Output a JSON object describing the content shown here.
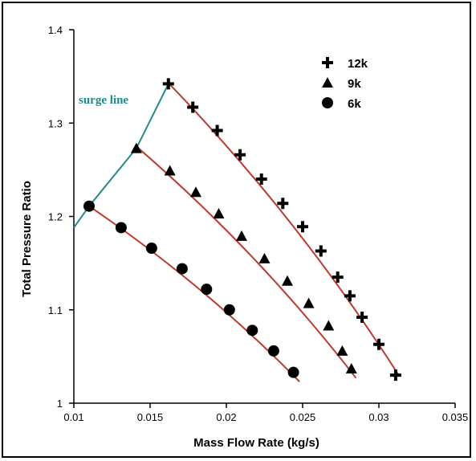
{
  "chart_data": {
    "type": "scatter",
    "xlabel": "Mass Flow Rate (kg/s)",
    "ylabel": "Total Pressure Ratio",
    "xlim": [
      0.01,
      0.035
    ],
    "ylim": [
      1.0,
      1.4
    ],
    "xticks": [
      0.01,
      0.015,
      0.02,
      0.025,
      0.03,
      0.035
    ],
    "xtick_labels": [
      "0.01",
      "0.015",
      "0.02",
      "0.025",
      "0.03",
      "0.035"
    ],
    "yticks": [
      1.0,
      1.1,
      1.2,
      1.3,
      1.4
    ],
    "ytick_labels": [
      "1",
      "1.1",
      "1.2",
      "1.3",
      "1.4"
    ],
    "grid": false,
    "legend_position": "top-right",
    "fit_color": "#c0392b",
    "series": [
      {
        "name": "12k",
        "marker": "plus",
        "color": "#000000",
        "x": [
          0.0162,
          0.0178,
          0.0194,
          0.0209,
          0.0223,
          0.0237,
          0.025,
          0.0262,
          0.0273,
          0.0281,
          0.0289,
          0.03,
          0.0311
        ],
        "y": [
          1.342,
          1.317,
          1.292,
          1.266,
          1.24,
          1.214,
          1.189,
          1.163,
          1.135,
          1.115,
          1.092,
          1.063,
          1.03
        ],
        "fit_x": [
          0.0162,
          0.0313
        ],
        "fit_y": [
          1.343,
          1.03
        ]
      },
      {
        "name": "9k",
        "marker": "triangle",
        "color": "#000000",
        "x": [
          0.0141,
          0.0163,
          0.018,
          0.0195,
          0.021,
          0.0225,
          0.024,
          0.0254,
          0.0267,
          0.0276,
          0.0282
        ],
        "y": [
          1.273,
          1.249,
          1.226,
          1.203,
          1.179,
          1.155,
          1.131,
          1.107,
          1.083,
          1.056,
          1.037
        ],
        "fit_x": [
          0.0141,
          0.0285
        ],
        "fit_y": [
          1.275,
          1.027
        ]
      },
      {
        "name": "6k",
        "marker": "circle",
        "color": "#000000",
        "x": [
          0.011,
          0.0131,
          0.0151,
          0.0171,
          0.0187,
          0.0202,
          0.0217,
          0.0231,
          0.0244
        ],
        "y": [
          1.211,
          1.188,
          1.166,
          1.144,
          1.122,
          1.1,
          1.078,
          1.056,
          1.033
        ],
        "fit_x": [
          0.011,
          0.0248
        ],
        "fit_y": [
          1.211,
          1.023
        ]
      }
    ],
    "surge_line": {
      "label": "surge line",
      "color": "#1f8a8a",
      "x": [
        0.01,
        0.011,
        0.0141,
        0.0162
      ],
      "y": [
        1.188,
        1.211,
        1.273,
        1.342
      ]
    }
  }
}
